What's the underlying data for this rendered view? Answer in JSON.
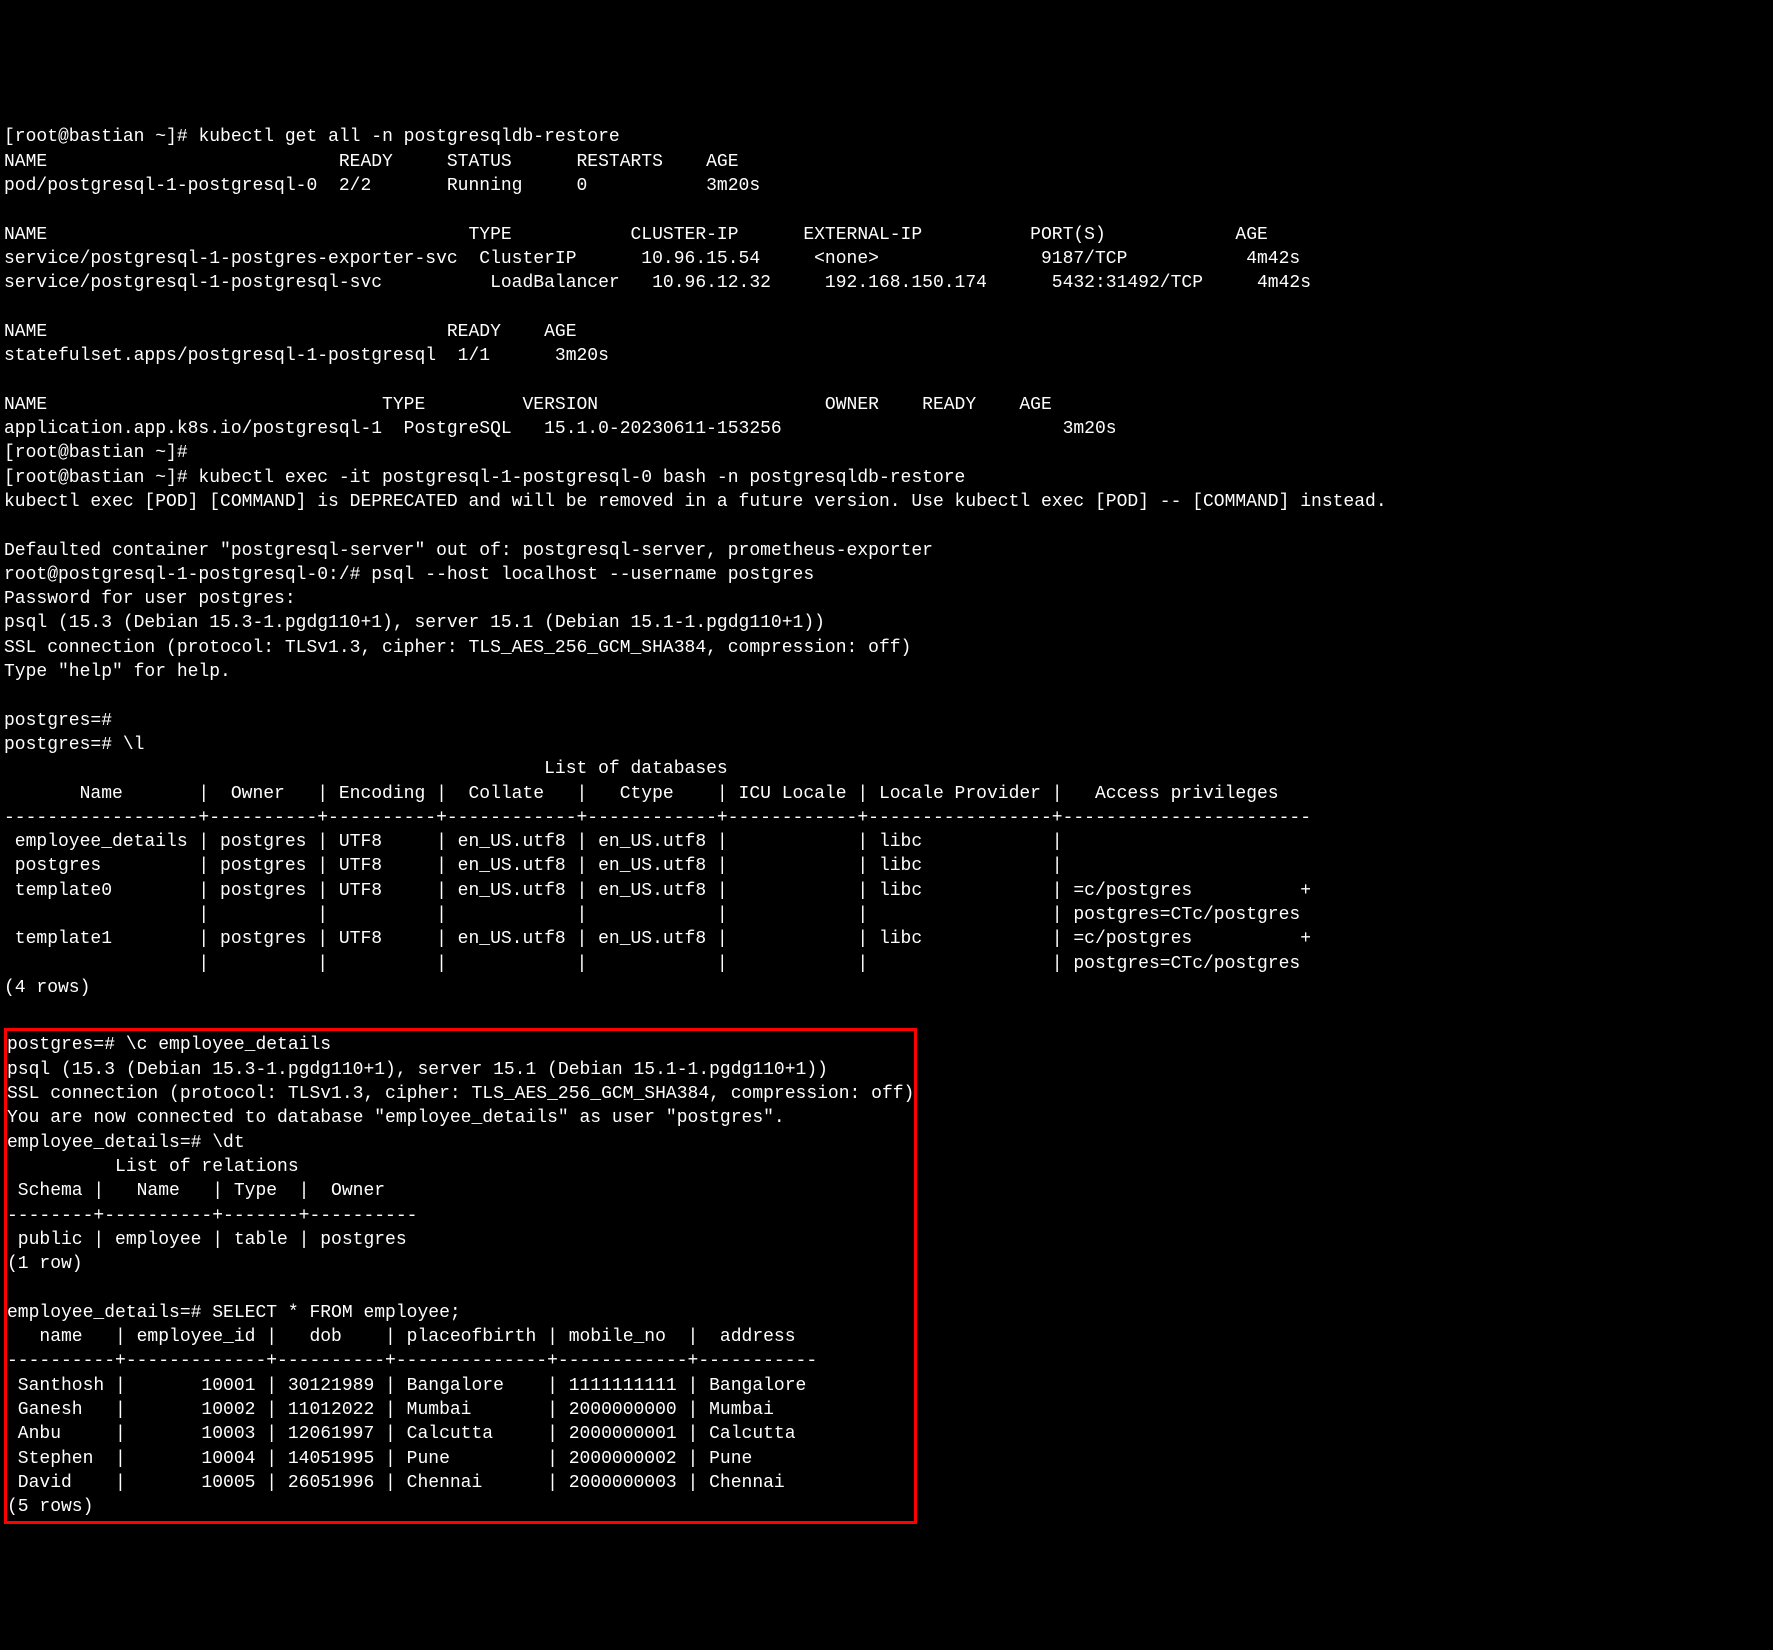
{
  "prompt": "[root@bastian ~]#",
  "cmd_get_all": "kubectl get all -n postgresqldb-restore",
  "pods": {
    "header": "NAME                           READY     STATUS      RESTARTS    AGE",
    "row1": "pod/postgresql-1-postgresql-0  2/2       Running     0           3m20s"
  },
  "services": {
    "header": "NAME                                       TYPE           CLUSTER-IP      EXTERNAL-IP          PORT(S)            AGE",
    "row1": "service/postgresql-1-postgres-exporter-svc  ClusterIP      10.96.15.54     <none>               9187/TCP           4m42s",
    "row2": "service/postgresql-1-postgresql-svc          LoadBalancer   10.96.12.32     192.168.150.174      5432:31492/TCP     4m42s"
  },
  "statefulset": {
    "header": "NAME                                     READY    AGE",
    "row1": "statefulset.apps/postgresql-1-postgresql  1/1      3m20s"
  },
  "application": {
    "header": "NAME                               TYPE         VERSION                     OWNER    READY    AGE",
    "row1": "application.app.k8s.io/postgresql-1  PostgreSQL   15.1.0-20230611-153256                          3m20s"
  },
  "empty_prompt": "[root@bastian ~]#",
  "cmd_exec": "[root@bastian ~]# kubectl exec -it postgresql-1-postgresql-0 bash -n postgresqldb-restore",
  "exec_deprecated": "kubectl exec [POD] [COMMAND] is DEPRECATED and will be removed in a future version. Use kubectl exec [POD] -- [COMMAND] instead.",
  "defaulted": "Defaulted container \"postgresql-server\" out of: postgresql-server, prometheus-exporter",
  "pod_prompt": "root@postgresql-1-postgresql-0:/# psql --host localhost --username postgres",
  "pw_prompt": "Password for user postgres:",
  "psql_ver": "psql (15.3 (Debian 15.3-1.pgdg110+1), server 15.1 (Debian 15.1-1.pgdg110+1))",
  "ssl_line": "SSL connection (protocol: TLSv1.3, cipher: TLS_AES_256_GCM_SHA384, compression: off)",
  "help_line": "Type \"help\" for help.",
  "pg_prompt1": "postgres=#",
  "pg_list_cmd": "postgres=# \\l",
  "db_list_title": "                                                  List of databases",
  "db_header": "       Name       |  Owner   | Encoding |  Collate   |   Ctype    | ICU Locale | Locale Provider |   Access privileges",
  "db_sep": "------------------+----------+----------+------------+------------+------------+-----------------+-----------------------",
  "db_r1": " employee_details | postgres | UTF8     | en_US.utf8 | en_US.utf8 |            | libc            |",
  "db_r2": " postgres         | postgres | UTF8     | en_US.utf8 | en_US.utf8 |            | libc            |",
  "db_r3": " template0        | postgres | UTF8     | en_US.utf8 | en_US.utf8 |            | libc            | =c/postgres          +",
  "db_r3b": "                  |          |          |            |            |            |                 | postgres=CTc/postgres",
  "db_r4": " template1        | postgres | UTF8     | en_US.utf8 | en_US.utf8 |            | libc            | =c/postgres          +",
  "db_r4b": "                  |          |          |            |            |            |                 | postgres=CTc/postgres",
  "db_count": "(4 rows)",
  "connect_cmd": "postgres=# \\c employee_details",
  "psql_ver2": "psql (15.3 (Debian 15.3-1.pgdg110+1), server 15.1 (Debian 15.1-1.pgdg110+1))",
  "ssl_line2": "SSL connection (protocol: TLSv1.3, cipher: TLS_AES_256_GCM_SHA384, compression: off)",
  "connected": "You are now connected to database \"employee_details\" as user \"postgres\".",
  "dt_cmd": "employee_details=# \\dt",
  "rel_title": "          List of relations",
  "rel_header": " Schema |   Name   | Type  |  Owner",
  "rel_sep": "--------+----------+-------+----------",
  "rel_r1": " public | employee | table | postgres",
  "rel_count": "(1 row)",
  "select_cmd": "employee_details=# SELECT * FROM employee;",
  "emp_header": "   name   | employee_id |   dob    | placeofbirth | mobile_no  |  address",
  "emp_sep": "----------+-------------+----------+--------------+------------+-----------",
  "emp_r1": " Santhosh |       10001 | 30121989 | Bangalore    | 1111111111 | Bangalore",
  "emp_r2": " Ganesh   |       10002 | 11012022 | Mumbai       | 2000000000 | Mumbai",
  "emp_r3": " Anbu     |       10003 | 12061997 | Calcutta     | 2000000001 | Calcutta",
  "emp_r4": " Stephen  |       10004 | 14051995 | Pune         | 2000000002 | Pune",
  "emp_r5": " David    |       10005 | 26051996 | Chennai      | 2000000003 | Chennai",
  "emp_count": "(5 rows)"
}
